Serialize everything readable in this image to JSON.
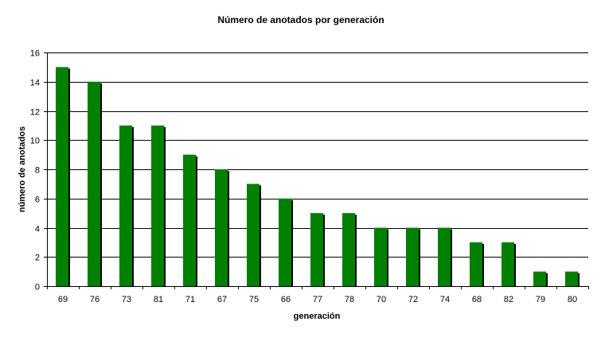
{
  "chart_data": {
    "type": "bar",
    "title": "Número de anotados por generación",
    "xlabel": "generación",
    "ylabel": "número de anotados",
    "categories": [
      "69",
      "76",
      "73",
      "81",
      "71",
      "67",
      "75",
      "66",
      "77",
      "78",
      "70",
      "72",
      "74",
      "68",
      "82",
      "79",
      "80"
    ],
    "values": [
      15,
      14,
      11,
      11,
      9,
      8,
      7,
      6,
      5,
      5,
      4,
      4,
      4,
      3,
      3,
      1,
      1
    ],
    "ylim": [
      0,
      16
    ],
    "yticks": [
      0,
      2,
      4,
      6,
      8,
      10,
      12,
      14,
      16
    ],
    "grid": true,
    "legend": "none",
    "colors": {
      "bar": "#008000",
      "shadow": "#000000",
      "grid": "#000000"
    }
  }
}
